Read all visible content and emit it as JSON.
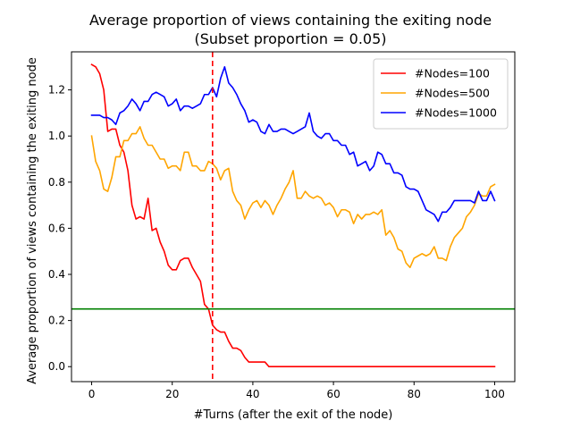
{
  "chart_data": {
    "type": "line",
    "title": "Average proportion of views containing the exiting node",
    "subtitle": "(Subset proportion = 0.05)",
    "xlabel": "#Turns (after the exit of the node)",
    "ylabel": "Average proportion of views containing the exiting node",
    "xlim": [
      -5,
      105
    ],
    "ylim": [
      -0.065,
      1.365
    ],
    "xticks": [
      0,
      20,
      40,
      60,
      80,
      100
    ],
    "yticks": [
      0.0,
      0.2,
      0.4,
      0.6,
      0.8,
      1.0,
      1.2
    ],
    "ytick_labels": [
      "0.0",
      "0.2",
      "0.4",
      "0.6",
      "0.8",
      "1.0",
      "1.2"
    ],
    "grid": false,
    "legend_position": "top-right",
    "x": [
      0,
      1,
      2,
      3,
      4,
      5,
      6,
      7,
      8,
      9,
      10,
      11,
      12,
      13,
      14,
      15,
      16,
      17,
      18,
      19,
      20,
      21,
      22,
      23,
      24,
      25,
      26,
      27,
      28,
      29,
      30,
      31,
      32,
      33,
      34,
      35,
      36,
      37,
      38,
      39,
      40,
      41,
      42,
      43,
      44,
      45,
      46,
      47,
      48,
      49,
      50,
      51,
      52,
      53,
      54,
      55,
      56,
      57,
      58,
      59,
      60,
      61,
      62,
      63,
      64,
      65,
      66,
      67,
      68,
      69,
      70,
      71,
      72,
      73,
      74,
      75,
      76,
      77,
      78,
      79,
      80,
      81,
      82,
      83,
      84,
      85,
      86,
      87,
      88,
      89,
      90,
      91,
      92,
      93,
      94,
      95,
      96,
      97,
      98,
      99,
      100
    ],
    "series": [
      {
        "name": "#Nodes=100",
        "color": "#ff0000",
        "values": [
          1.31,
          1.3,
          1.27,
          1.2,
          1.02,
          1.03,
          1.03,
          0.96,
          0.93,
          0.85,
          0.7,
          0.64,
          0.65,
          0.64,
          0.73,
          0.59,
          0.6,
          0.54,
          0.5,
          0.44,
          0.42,
          0.42,
          0.46,
          0.47,
          0.47,
          0.43,
          0.4,
          0.37,
          0.27,
          0.25,
          0.18,
          0.16,
          0.15,
          0.15,
          0.11,
          0.08,
          0.08,
          0.07,
          0.04,
          0.02,
          0.02,
          0.02,
          0.02,
          0.02,
          0.0,
          0.0,
          0.0,
          0.0,
          0.0,
          0.0,
          0.0,
          0.0,
          0.0,
          0.0,
          0.0,
          0.0,
          0.0,
          0.0,
          0.0,
          0.0,
          0.0,
          0.0,
          0.0,
          0.0,
          0.0,
          0.0,
          0.0,
          0.0,
          0.0,
          0.0,
          0.0,
          0.0,
          0.0,
          0.0,
          0.0,
          0.0,
          0.0,
          0.0,
          0.0,
          0.0,
          0.0,
          0.0,
          0.0,
          0.0,
          0.0,
          0.0,
          0.0,
          0.0,
          0.0,
          0.0,
          0.0,
          0.0,
          0.0,
          0.0,
          0.0,
          0.0,
          0.0,
          0.0,
          0.0,
          0.0,
          0.0
        ]
      },
      {
        "name": "#Nodes=500",
        "color": "#ffa500",
        "values": [
          1.0,
          0.89,
          0.85,
          0.77,
          0.76,
          0.82,
          0.91,
          0.91,
          0.98,
          0.98,
          1.01,
          1.01,
          1.04,
          0.99,
          0.96,
          0.96,
          0.93,
          0.9,
          0.9,
          0.86,
          0.87,
          0.87,
          0.85,
          0.93,
          0.93,
          0.87,
          0.87,
          0.85,
          0.85,
          0.89,
          0.88,
          0.86,
          0.81,
          0.85,
          0.86,
          0.76,
          0.72,
          0.7,
          0.64,
          0.68,
          0.71,
          0.72,
          0.69,
          0.72,
          0.7,
          0.66,
          0.7,
          0.73,
          0.77,
          0.8,
          0.85,
          0.73,
          0.73,
          0.76,
          0.74,
          0.73,
          0.74,
          0.73,
          0.7,
          0.71,
          0.69,
          0.65,
          0.68,
          0.68,
          0.67,
          0.62,
          0.66,
          0.64,
          0.66,
          0.66,
          0.67,
          0.66,
          0.68,
          0.57,
          0.59,
          0.56,
          0.51,
          0.5,
          0.45,
          0.43,
          0.47,
          0.48,
          0.49,
          0.48,
          0.49,
          0.52,
          0.47,
          0.47,
          0.46,
          0.52,
          0.56,
          0.58,
          0.6,
          0.65,
          0.67,
          0.7,
          0.75,
          0.74,
          0.74,
          0.78,
          0.79
        ]
      },
      {
        "name": "#Nodes=1000",
        "color": "#0000ff",
        "values": [
          1.09,
          1.09,
          1.09,
          1.08,
          1.08,
          1.07,
          1.05,
          1.1,
          1.11,
          1.13,
          1.16,
          1.14,
          1.11,
          1.15,
          1.15,
          1.18,
          1.19,
          1.18,
          1.17,
          1.13,
          1.14,
          1.16,
          1.11,
          1.13,
          1.13,
          1.12,
          1.13,
          1.14,
          1.18,
          1.18,
          1.21,
          1.17,
          1.25,
          1.3,
          1.23,
          1.21,
          1.18,
          1.14,
          1.11,
          1.06,
          1.07,
          1.06,
          1.02,
          1.01,
          1.05,
          1.02,
          1.02,
          1.03,
          1.03,
          1.02,
          1.01,
          1.02,
          1.03,
          1.04,
          1.1,
          1.02,
          1.0,
          0.99,
          1.01,
          1.01,
          0.98,
          0.98,
          0.96,
          0.96,
          0.92,
          0.93,
          0.87,
          0.88,
          0.89,
          0.85,
          0.87,
          0.93,
          0.92,
          0.88,
          0.88,
          0.84,
          0.84,
          0.83,
          0.78,
          0.77,
          0.77,
          0.76,
          0.72,
          0.68,
          0.67,
          0.66,
          0.63,
          0.67,
          0.67,
          0.69,
          0.72,
          0.72,
          0.72,
          0.72,
          0.72,
          0.71,
          0.76,
          0.72,
          0.72,
          0.76,
          0.72
        ]
      }
    ],
    "reference_lines": [
      {
        "orientation": "horizontal",
        "value": 0.25,
        "color": "#008000",
        "style": "solid"
      },
      {
        "orientation": "vertical",
        "value": 30,
        "color": "#ff0000",
        "style": "dashed"
      }
    ]
  }
}
